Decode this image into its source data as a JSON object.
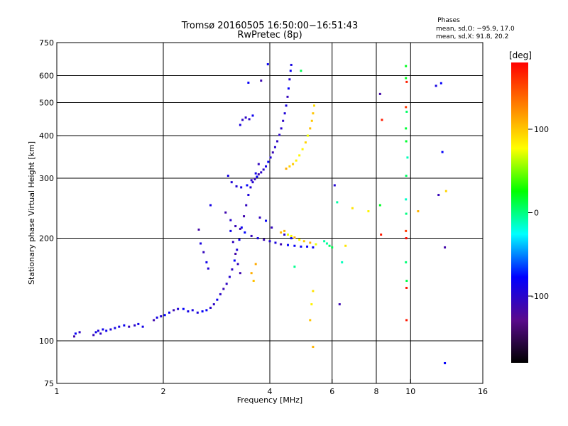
{
  "chart_data": {
    "type": "scatter",
    "title": "Tromsø 20160505 16:50:00−16:51:43",
    "subtitle": "RwPretec (8p)",
    "stats": {
      "heading": "Phases",
      "line1": "mean, sd,O: −95.9, 17.0",
      "line2": "mean, sd,X:  91.8, 20.2"
    },
    "xlabel": "Frequency [MHz]",
    "ylabel": "Stationary phase Virtual Height [km]",
    "x_scale": "log",
    "y_scale": "log",
    "xlim": [
      1,
      16
    ],
    "ylim": [
      75,
      750
    ],
    "x_ticks": [
      1,
      2,
      4,
      6,
      8,
      10,
      16
    ],
    "y_ticks": [
      75,
      100,
      200,
      300,
      400,
      500,
      600,
      750
    ],
    "x_gridlines": [
      2,
      4,
      6,
      8,
      10
    ],
    "y_gridlines": [
      100,
      200,
      300,
      400,
      500,
      600
    ],
    "grid": true,
    "colorbar": {
      "label": "[deg]",
      "range": [
        -180,
        180
      ],
      "ticks": [
        100,
        0,
        -100
      ],
      "colors": [
        "#000000",
        "#5a0a8c",
        "#0000ff",
        "#00ffff",
        "#00ff00",
        "#ffff00",
        "#ff8000",
        "#ff0000"
      ]
    },
    "series": [
      {
        "mode": "O",
        "phase_deg": -95.9,
        "points": [
          [
            1.12,
            103
          ],
          [
            1.13,
            105
          ],
          [
            1.16,
            106
          ],
          [
            1.27,
            104
          ],
          [
            1.29,
            106
          ],
          [
            1.31,
            107
          ],
          [
            1.33,
            105
          ],
          [
            1.35,
            108
          ],
          [
            1.38,
            107
          ],
          [
            1.42,
            108
          ],
          [
            1.46,
            109
          ],
          [
            1.5,
            110
          ],
          [
            1.55,
            111
          ],
          [
            1.6,
            110
          ],
          [
            1.66,
            111
          ],
          [
            1.7,
            112
          ],
          [
            1.75,
            110
          ],
          [
            1.88,
            115
          ],
          [
            1.92,
            117
          ],
          [
            1.97,
            118
          ],
          [
            2.02,
            119
          ],
          [
            2.08,
            121
          ],
          [
            2.14,
            123
          ],
          [
            2.2,
            124
          ],
          [
            2.28,
            124
          ],
          [
            2.35,
            122
          ],
          [
            2.42,
            123
          ],
          [
            2.5,
            121
          ],
          [
            2.58,
            122
          ],
          [
            2.65,
            123
          ],
          [
            2.72,
            125
          ],
          [
            2.78,
            128
          ],
          [
            2.84,
            132
          ],
          [
            2.9,
            137
          ],
          [
            2.96,
            142
          ],
          [
            3.02,
            147
          ],
          [
            3.08,
            154
          ],
          [
            3.13,
            162
          ],
          [
            3.18,
            172
          ],
          [
            3.23,
            185
          ],
          [
            3.28,
            198
          ],
          [
            3.33,
            215
          ],
          [
            3.38,
            232
          ],
          [
            3.43,
            250
          ],
          [
            3.48,
            268
          ],
          [
            3.53,
            282
          ],
          [
            3.58,
            292
          ],
          [
            3.63,
            298
          ],
          [
            3.68,
            303
          ],
          [
            3.72,
            308
          ],
          [
            3.78,
            312
          ],
          [
            3.84,
            318
          ],
          [
            3.9,
            325
          ],
          [
            3.96,
            335
          ],
          [
            4.02,
            345
          ],
          [
            4.08,
            357
          ],
          [
            4.14,
            370
          ],
          [
            4.2,
            385
          ],
          [
            4.26,
            402
          ],
          [
            4.31,
            420
          ],
          [
            4.36,
            442
          ],
          [
            4.41,
            465
          ],
          [
            4.45,
            490
          ],
          [
            4.49,
            520
          ],
          [
            4.52,
            550
          ],
          [
            4.55,
            585
          ],
          [
            4.58,
            620
          ],
          [
            4.6,
            645
          ],
          [
            3.05,
            305
          ],
          [
            3.12,
            292
          ],
          [
            3.22,
            284
          ],
          [
            3.32,
            282
          ],
          [
            3.45,
            286
          ],
          [
            3.55,
            296
          ],
          [
            3.65,
            310
          ],
          [
            3.72,
            330
          ],
          [
            3.3,
            430
          ],
          [
            3.35,
            445
          ],
          [
            3.42,
            452
          ],
          [
            3.5,
            447
          ],
          [
            3.58,
            458
          ],
          [
            3.48,
            572
          ],
          [
            3.78,
            580
          ],
          [
            3.95,
            648
          ],
          [
            3.0,
            238
          ],
          [
            3.1,
            226
          ],
          [
            3.2,
            217
          ],
          [
            3.3,
            213
          ],
          [
            3.4,
            208
          ],
          [
            3.55,
            203
          ],
          [
            3.7,
            200
          ],
          [
            3.85,
            198
          ],
          [
            4.0,
            196
          ],
          [
            4.15,
            194
          ],
          [
            4.3,
            192
          ],
          [
            4.5,
            191
          ],
          [
            4.7,
            190
          ],
          [
            4.9,
            189
          ],
          [
            5.1,
            189
          ],
          [
            5.3,
            188
          ],
          [
            3.1,
            210
          ],
          [
            3.15,
            195
          ],
          [
            3.2,
            180
          ],
          [
            3.25,
            168
          ],
          [
            3.3,
            158
          ],
          [
            2.52,
            212
          ],
          [
            2.55,
            193
          ],
          [
            2.6,
            182
          ],
          [
            2.65,
            170
          ],
          [
            2.68,
            163
          ],
          [
            2.72,
            250
          ],
          [
            3.75,
            230
          ],
          [
            3.9,
            225
          ],
          [
            4.05,
            215
          ],
          [
            4.4,
            205
          ],
          [
            4.6,
            200
          ],
          [
            6.3,
            128
          ],
          [
            6.1,
            286
          ],
          [
            8.2,
            530
          ],
          [
            12.2,
            570
          ],
          [
            11.8,
            560
          ],
          [
            12.3,
            358
          ],
          [
            12.5,
            188
          ],
          [
            12.5,
            86
          ],
          [
            12.0,
            268
          ]
        ]
      },
      {
        "mode": "X",
        "phase_deg": 91.8,
        "points": [
          [
            4.45,
            320
          ],
          [
            4.55,
            325
          ],
          [
            4.65,
            330
          ],
          [
            4.75,
            338
          ],
          [
            4.85,
            350
          ],
          [
            4.95,
            365
          ],
          [
            5.05,
            382
          ],
          [
            5.12,
            400
          ],
          [
            5.2,
            420
          ],
          [
            5.26,
            442
          ],
          [
            5.3,
            465
          ],
          [
            5.34,
            490
          ],
          [
            4.5,
            205
          ],
          [
            4.6,
            203
          ],
          [
            4.7,
            201
          ],
          [
            4.85,
            198
          ],
          [
            5.0,
            196
          ],
          [
            5.2,
            194
          ],
          [
            5.4,
            192
          ],
          [
            4.4,
            210
          ],
          [
            4.3,
            208
          ],
          [
            3.65,
            168
          ],
          [
            3.55,
            158
          ],
          [
            3.6,
            150
          ],
          [
            5.3,
            140
          ],
          [
            5.25,
            128
          ],
          [
            5.2,
            115
          ],
          [
            5.3,
            96
          ],
          [
            6.55,
            190
          ],
          [
            7.6,
            240
          ],
          [
            6.85,
            245
          ],
          [
            10.5,
            240
          ],
          [
            12.6,
            275
          ]
        ]
      },
      {
        "mode": "mixed",
        "phase_deg": 0,
        "points": [
          [
            5.8,
            193
          ],
          [
            5.9,
            190
          ],
          [
            6.0,
            188
          ],
          [
            5.7,
            196
          ],
          [
            4.9,
            620
          ],
          [
            4.7,
            165
          ],
          [
            6.4,
            170
          ],
          [
            6.2,
            255
          ],
          [
            9.7,
            640
          ],
          [
            9.7,
            590
          ],
          [
            9.75,
            470
          ],
          [
            9.7,
            420
          ],
          [
            9.72,
            385
          ],
          [
            9.8,
            345
          ],
          [
            9.72,
            305
          ],
          [
            9.7,
            260
          ],
          [
            9.72,
            236
          ],
          [
            9.7,
            170
          ],
          [
            9.75,
            150
          ],
          [
            8.2,
            250
          ]
        ]
      },
      {
        "mode": "red",
        "phase_deg": 170,
        "points": [
          [
            8.3,
            445
          ],
          [
            9.7,
            485
          ],
          [
            9.75,
            575
          ],
          [
            9.7,
            210
          ],
          [
            9.72,
            200
          ],
          [
            9.74,
            115
          ],
          [
            9.74,
            143
          ],
          [
            8.25,
            205
          ]
        ]
      }
    ]
  }
}
